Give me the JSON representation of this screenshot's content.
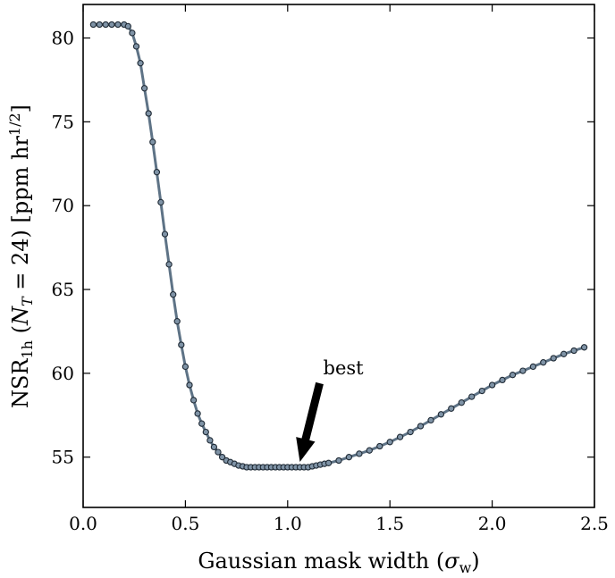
{
  "chart_data": {
    "type": "scatter",
    "xlabel": "Gaussian mask width (σw)",
    "ylabel": "NSR1h (NT = 24) [ppm hr1/2]",
    "xlim": [
      0.0,
      2.5
    ],
    "ylim": [
      52,
      82
    ],
    "x_ticks": [
      "0.0",
      "0.5",
      "1.0",
      "1.5",
      "2.0",
      "2.5"
    ],
    "y_ticks": [
      "55",
      "60",
      "65",
      "70",
      "75",
      "80"
    ],
    "grid": false,
    "marker_color": "#7f93a6",
    "line_color": "#5e7386",
    "annotation": {
      "text": "best",
      "x": 1.06,
      "y": 54.4
    },
    "series": [
      {
        "x": [
          0.05,
          0.08,
          0.11,
          0.14,
          0.17,
          0.2,
          0.22,
          0.24,
          0.26,
          0.28,
          0.3,
          0.32,
          0.34,
          0.36,
          0.38,
          0.4,
          0.42,
          0.44,
          0.46,
          0.48,
          0.5,
          0.52,
          0.54,
          0.56,
          0.58,
          0.6,
          0.62,
          0.64,
          0.66,
          0.68,
          0.7,
          0.72,
          0.74,
          0.76,
          0.78,
          0.8,
          0.82,
          0.84,
          0.86,
          0.88,
          0.9,
          0.92,
          0.94,
          0.96,
          0.98,
          1.0,
          1.02,
          1.04,
          1.06,
          1.08,
          1.1,
          1.12,
          1.14,
          1.16,
          1.18,
          1.2,
          1.25,
          1.3,
          1.35,
          1.4,
          1.45,
          1.5,
          1.55,
          1.6,
          1.65,
          1.7,
          1.75,
          1.8,
          1.85,
          1.9,
          1.95,
          2.0,
          2.05,
          2.1,
          2.15,
          2.2,
          2.25,
          2.3,
          2.35,
          2.4,
          2.45
        ],
        "y": [
          80.8,
          80.8,
          80.8,
          80.8,
          80.8,
          80.8,
          80.7,
          80.3,
          79.5,
          78.5,
          77.0,
          75.5,
          73.8,
          72.0,
          70.2,
          68.3,
          66.5,
          64.7,
          63.1,
          61.7,
          60.4,
          59.3,
          58.4,
          57.6,
          57.0,
          56.5,
          56.0,
          55.6,
          55.3,
          55.0,
          54.8,
          54.7,
          54.6,
          54.5,
          54.45,
          54.4,
          54.4,
          54.4,
          54.4,
          54.4,
          54.4,
          54.4,
          54.4,
          54.4,
          54.4,
          54.4,
          54.4,
          54.4,
          54.4,
          54.4,
          54.4,
          54.45,
          54.5,
          54.55,
          54.6,
          54.65,
          54.8,
          55.0,
          55.2,
          55.4,
          55.65,
          55.9,
          56.2,
          56.5,
          56.85,
          57.2,
          57.55,
          57.9,
          58.25,
          58.6,
          58.95,
          59.3,
          59.6,
          59.9,
          60.15,
          60.4,
          60.65,
          60.9,
          61.15,
          61.35,
          61.55
        ]
      }
    ]
  }
}
